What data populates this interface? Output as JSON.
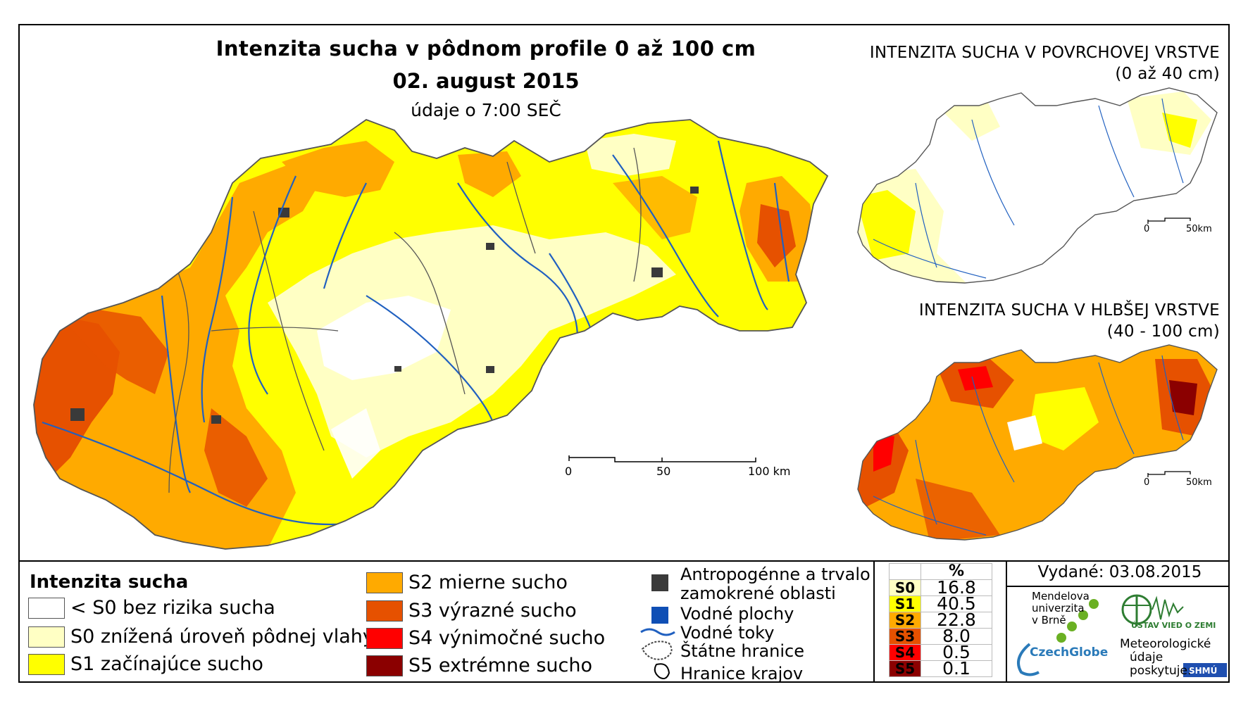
{
  "map": {
    "title": "Intenzita sucha v pôdnom profile 0 až 100 cm",
    "date": "02. august 2015",
    "time_note": "údaje o 7:00 SEČ",
    "scale": {
      "labels": [
        "0",
        "50",
        "100 km"
      ]
    }
  },
  "insets": {
    "top": {
      "title_line1": "INTENZITA SUCHA V POVRCHOVEJ VRSTVE",
      "title_line2": "(0 až 40 cm)",
      "scale_labels": [
        "0",
        "50km"
      ]
    },
    "bottom": {
      "title_line1": "INTENZITA SUCHA V HLBŠEJ VRSTVE",
      "title_line2": "(40 - 100 cm)",
      "scale_labels": [
        "0",
        "50km"
      ]
    }
  },
  "legend": {
    "title": "Intenzita sucha",
    "classes": [
      {
        "label": "< S0 bez rizika sucha",
        "color": "#ffffff"
      },
      {
        "label": "S0 znížená úroveň pôdnej vlahy",
        "color": "#ffffc4"
      },
      {
        "label": "S1 začínajúce sucho",
        "color": "#ffff00"
      },
      {
        "label": "S2 mierne sucho",
        "color": "#ffaa00"
      },
      {
        "label": "S3 výrazné sucho",
        "color": "#e65100"
      },
      {
        "label": "S4 výnimočné sucho",
        "color": "#ff0000"
      },
      {
        "label": "S5 extrémne sucho",
        "color": "#8b0000"
      }
    ],
    "symbols": [
      {
        "label_line1": "Antropogénne a trvalo",
        "label_line2": "zamokrené oblasti",
        "icon": "dark-square-icon",
        "color": "#3a3a3a"
      },
      {
        "label_line1": "Vodné plochy",
        "icon": "blue-square-icon",
        "color": "#0f4fb5"
      },
      {
        "label_line1": "Vodné toky",
        "icon": "river-line-icon",
        "color": "#2060c0"
      },
      {
        "label_line1": "Štátne hranice",
        "icon": "state-border-icon"
      },
      {
        "label_line1": "Hranice krajov",
        "icon": "region-border-icon"
      }
    ]
  },
  "stats": {
    "header": "%",
    "rows": [
      {
        "class": "S0",
        "value": "16.8",
        "color": "#ffffc4"
      },
      {
        "class": "S1",
        "value": "40.5",
        "color": "#ffff00"
      },
      {
        "class": "S2",
        "value": "22.8",
        "color": "#ffaa00"
      },
      {
        "class": "S3",
        "value": "8.0",
        "color": "#e65100"
      },
      {
        "class": "S4",
        "value": "0.5",
        "color": "#ff0000"
      },
      {
        "class": "S5",
        "value": "0.1",
        "color": "#8b0000"
      }
    ]
  },
  "issued": "Vydané: 03.08.2015",
  "logos": {
    "mendel_line1": "Mendelova",
    "mendel_line2": "univerzita",
    "mendel_line3": "v Brně",
    "czechglobe": "CzechGlobe",
    "ustav": "ÚSTAV VIED O ZEMI",
    "meteo_line1": "Meteorologické",
    "meteo_line2": "údaje",
    "meteo_line3": "poskytuje:",
    "shmu": "SHMÚ"
  }
}
